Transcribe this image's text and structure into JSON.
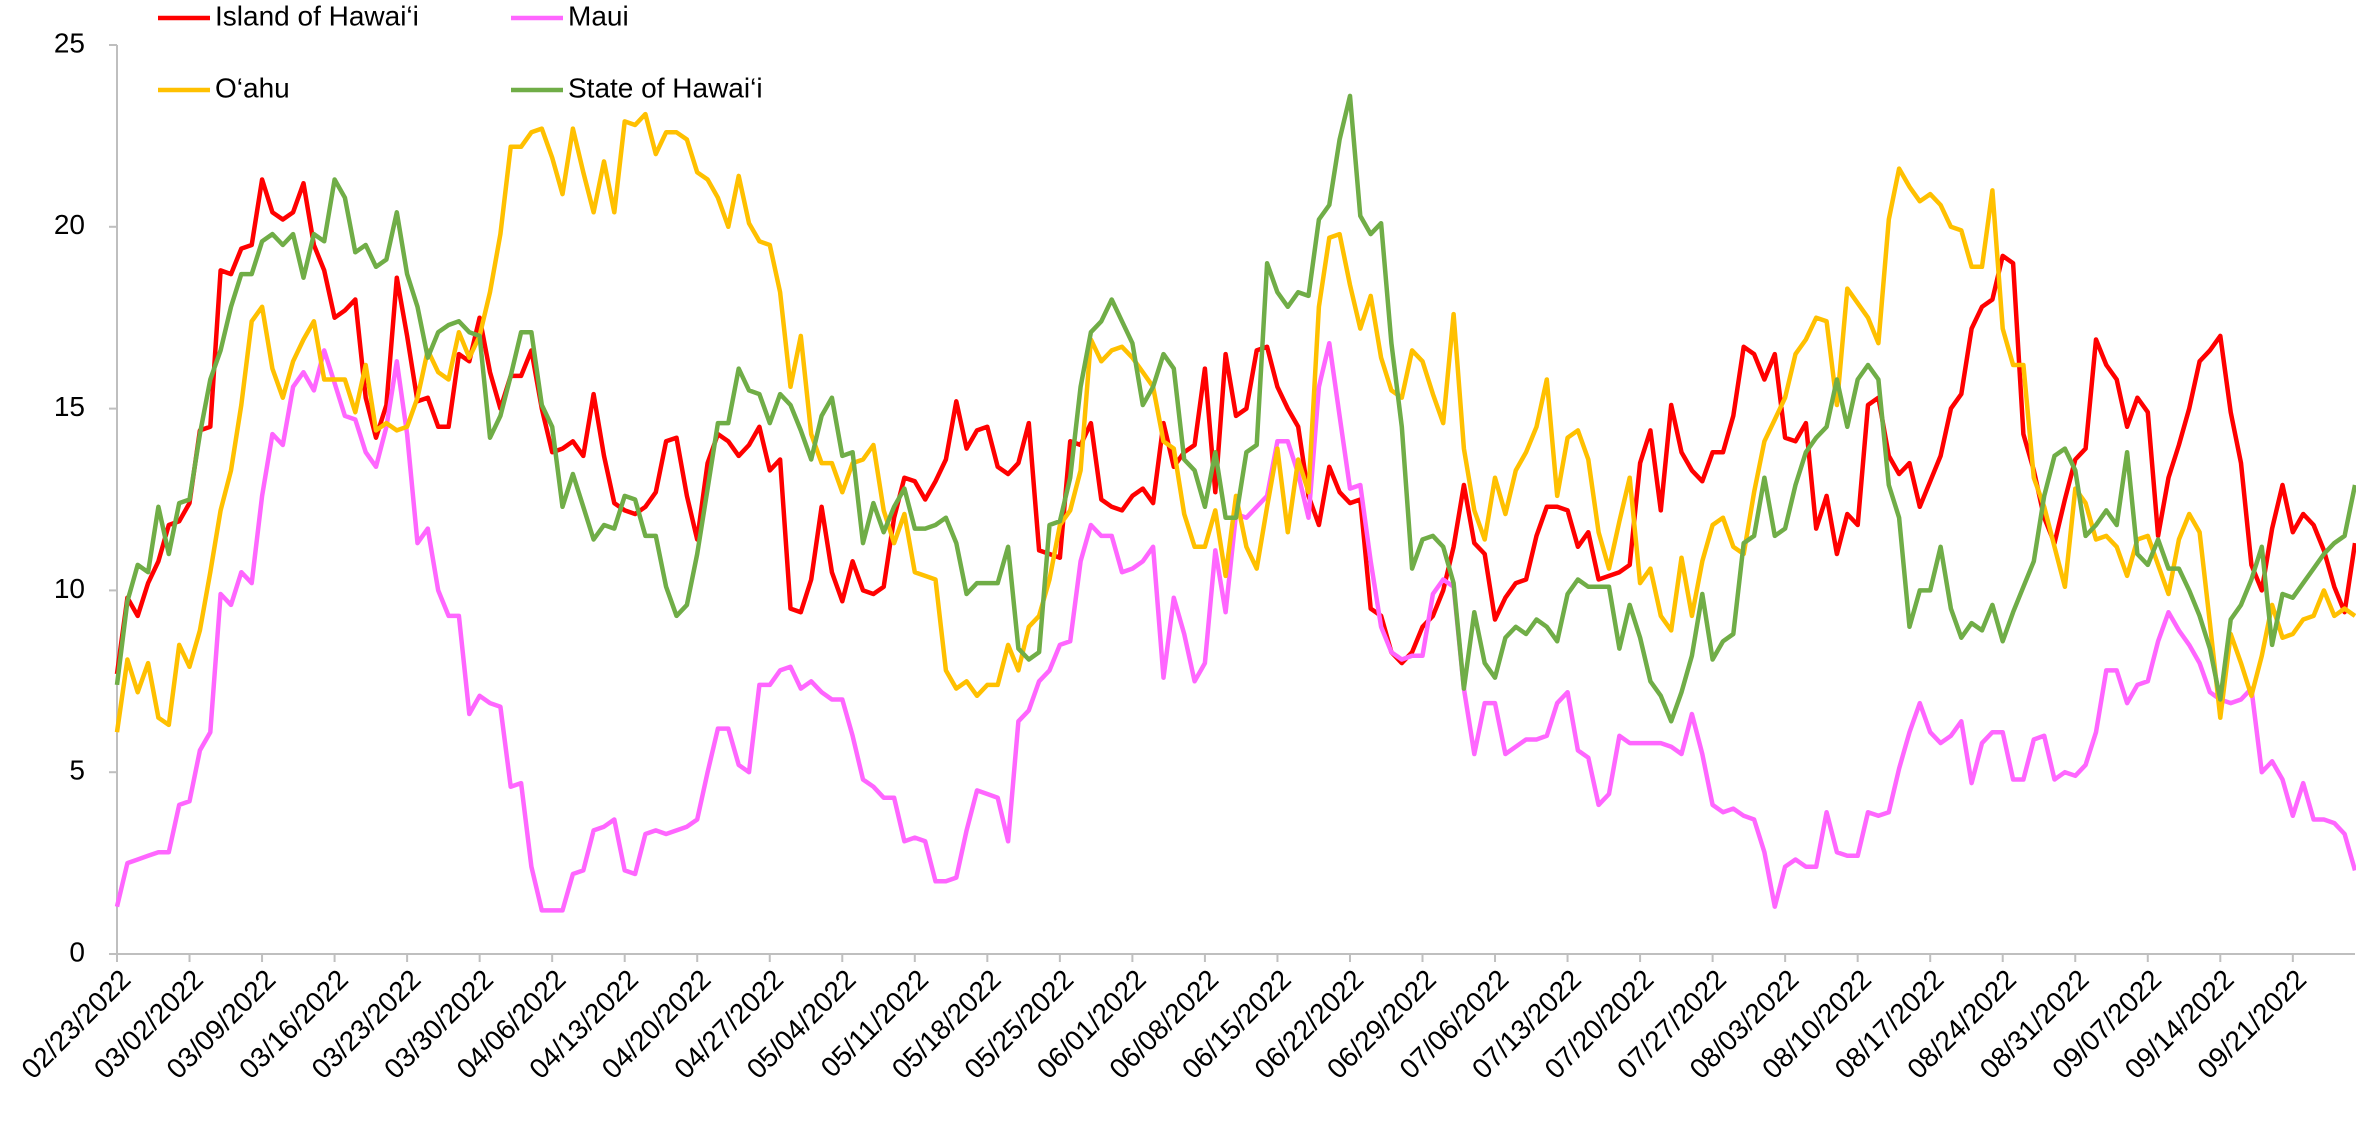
{
  "chart_data": {
    "type": "line",
    "categories": [
      "02/23/2022",
      null,
      null,
      null,
      null,
      null,
      null,
      "03/02/2022",
      null,
      null,
      null,
      null,
      null,
      null,
      "03/09/2022",
      null,
      null,
      null,
      null,
      null,
      null,
      "03/16/2022",
      null,
      null,
      null,
      null,
      null,
      null,
      "03/23/2022",
      null,
      null,
      null,
      null,
      null,
      null,
      "03/30/2022",
      null,
      null,
      null,
      null,
      null,
      null,
      "04/06/2022",
      null,
      null,
      null,
      null,
      null,
      null,
      "04/13/2022",
      null,
      null,
      null,
      null,
      null,
      null,
      "04/20/2022",
      null,
      null,
      null,
      null,
      null,
      null,
      "04/27/2022",
      null,
      null,
      null,
      null,
      null,
      null,
      "05/04/2022",
      null,
      null,
      null,
      null,
      null,
      null,
      "05/11/2022",
      null,
      null,
      null,
      null,
      null,
      null,
      "05/18/2022",
      null,
      null,
      null,
      null,
      null,
      null,
      "05/25/2022",
      null,
      null,
      null,
      null,
      null,
      null,
      "06/01/2022",
      null,
      null,
      null,
      null,
      null,
      null,
      "06/08/2022",
      null,
      null,
      null,
      null,
      null,
      null,
      "06/15/2022",
      null,
      null,
      null,
      null,
      null,
      null,
      "06/22/2022",
      null,
      null,
      null,
      null,
      null,
      null,
      "06/29/2022",
      null,
      null,
      null,
      null,
      null,
      null,
      "07/06/2022",
      null,
      null,
      null,
      null,
      null,
      null,
      "07/13/2022",
      null,
      null,
      null,
      null,
      null,
      null,
      "07/20/2022",
      null,
      null,
      null,
      null,
      null,
      null,
      "07/27/2022",
      null,
      null,
      null,
      null,
      null,
      null,
      "08/03/2022",
      null,
      null,
      null,
      null,
      null,
      null,
      "08/10/2022",
      null,
      null,
      null,
      null,
      null,
      null,
      "08/17/2022",
      null,
      null,
      null,
      null,
      null,
      null,
      "08/24/2022",
      null,
      null,
      null,
      null,
      null,
      null,
      "08/31/2022",
      null,
      null,
      null,
      null,
      null,
      null,
      "09/07/2022",
      null,
      null,
      null,
      null,
      null,
      null,
      "09/14/2022",
      null,
      null,
      null,
      null,
      null,
      null,
      "09/21/2022",
      null,
      null,
      null,
      null,
      null,
      null
    ],
    "series": [
      {
        "name": "Island of Hawai‘i",
        "color": "#ff0000",
        "values": [
          7.7,
          9.8,
          9.3,
          10.2,
          10.8,
          11.8,
          11.9,
          12.4,
          14.4,
          14.5,
          18.8,
          18.7,
          19.4,
          19.5,
          21.3,
          20.4,
          20.2,
          20.4,
          21.2,
          19.5,
          18.8,
          17.5,
          17.7,
          18.0,
          15.3,
          14.2,
          15.1,
          18.6,
          17.0,
          15.2,
          15.3,
          14.5,
          14.5,
          16.5,
          16.3,
          17.5,
          16.0,
          15.0,
          15.9,
          15.9,
          16.6,
          15.0,
          13.8,
          13.9,
          14.1,
          13.7,
          15.4,
          13.7,
          12.4,
          12.2,
          12.1,
          12.3,
          12.7,
          14.1,
          14.2,
          12.6,
          11.4,
          13.5,
          14.3,
          14.1,
          13.7,
          14.0,
          14.5,
          13.3,
          13.6,
          9.5,
          9.4,
          10.3,
          12.3,
          10.5,
          9.7,
          10.8,
          10.0,
          9.9,
          10.1,
          12.0,
          13.1,
          13.0,
          12.5,
          13.0,
          13.6,
          15.2,
          13.9,
          14.4,
          14.5,
          13.4,
          13.2,
          13.5,
          14.6,
          11.1,
          11.0,
          10.9,
          14.1,
          14.0,
          14.6,
          12.5,
          12.3,
          12.2,
          12.6,
          12.8,
          12.4,
          14.6,
          13.4,
          13.8,
          14.0,
          16.1,
          12.7,
          16.5,
          14.8,
          15.0,
          16.6,
          16.7,
          15.6,
          15.0,
          14.5,
          12.6,
          11.8,
          13.4,
          12.7,
          12.4,
          12.5,
          9.5,
          9.3,
          8.3,
          8.0,
          8.3,
          9.0,
          9.3,
          10.0,
          11.2,
          12.9,
          11.3,
          11.0,
          9.2,
          9.8,
          10.2,
          10.3,
          11.5,
          12.3,
          12.3,
          12.2,
          11.2,
          11.6,
          10.3,
          10.4,
          10.5,
          10.7,
          13.5,
          14.4,
          12.2,
          15.1,
          13.8,
          13.3,
          13.0,
          13.8,
          13.8,
          14.8,
          16.7,
          16.5,
          15.8,
          16.5,
          14.2,
          14.1,
          14.6,
          11.7,
          12.6,
          11.0,
          12.1,
          11.8,
          15.1,
          15.3,
          13.7,
          13.2,
          13.5,
          12.3,
          13.0,
          13.7,
          15.0,
          15.4,
          17.2,
          17.8,
          18.0,
          19.2,
          19.0,
          14.3,
          13.3,
          12.0,
          11.3,
          12.5,
          13.6,
          13.9,
          16.9,
          16.2,
          15.8,
          14.5,
          15.3,
          14.9,
          11.5,
          13.1,
          14.0,
          15.0,
          16.3,
          16.6,
          17.0,
          14.9,
          13.5,
          10.7,
          10.0,
          11.7,
          12.9,
          11.6,
          12.1,
          11.8,
          11.1,
          10.1,
          9.4,
          11.3
        ]
      },
      {
        "name": "Maui",
        "color": "#ff66ff",
        "values": [
          1.3,
          2.5,
          2.6,
          2.7,
          2.8,
          2.8,
          4.1,
          4.2,
          5.6,
          6.1,
          9.9,
          9.6,
          10.5,
          10.2,
          12.6,
          14.3,
          14.0,
          15.6,
          16.0,
          15.5,
          16.6,
          15.7,
          14.8,
          14.7,
          13.8,
          13.4,
          14.5,
          16.3,
          14.3,
          11.3,
          11.7,
          10.0,
          9.3,
          9.3,
          6.6,
          7.1,
          6.9,
          6.8,
          4.6,
          4.7,
          2.4,
          1.2,
          1.2,
          1.2,
          2.2,
          2.3,
          3.4,
          3.5,
          3.7,
          2.3,
          2.2,
          3.3,
          3.4,
          3.3,
          3.4,
          3.5,
          3.7,
          5.0,
          6.2,
          6.2,
          5.2,
          5.0,
          7.4,
          7.4,
          7.8,
          7.9,
          7.3,
          7.5,
          7.2,
          7.0,
          7.0,
          6.0,
          4.8,
          4.6,
          4.3,
          4.3,
          3.1,
          3.2,
          3.1,
          2.0,
          2.0,
          2.1,
          3.4,
          4.5,
          4.4,
          4.3,
          3.1,
          6.4,
          6.7,
          7.5,
          7.8,
          8.5,
          8.6,
          10.8,
          11.8,
          11.5,
          11.5,
          10.5,
          10.6,
          10.8,
          11.2,
          7.6,
          9.8,
          8.8,
          7.5,
          8.0,
          11.1,
          9.4,
          12.1,
          12.0,
          12.3,
          12.6,
          14.1,
          14.1,
          13.2,
          12.0,
          15.6,
          16.8,
          14.8,
          12.8,
          12.9,
          10.8,
          9.0,
          8.3,
          8.1,
          8.2,
          8.2,
          9.9,
          10.3,
          10.1,
          7.3,
          5.5,
          6.9,
          6.9,
          5.5,
          5.7,
          5.9,
          5.9,
          6.0,
          6.9,
          7.2,
          5.6,
          5.4,
          4.1,
          4.4,
          6.0,
          5.8,
          5.8,
          5.8,
          5.8,
          5.7,
          5.5,
          6.6,
          5.5,
          4.1,
          3.9,
          4.0,
          3.8,
          3.7,
          2.8,
          1.3,
          2.4,
          2.6,
          2.4,
          2.4,
          3.9,
          2.8,
          2.7,
          2.7,
          3.9,
          3.8,
          3.9,
          5.1,
          6.1,
          6.9,
          6.1,
          5.8,
          6.0,
          6.4,
          4.7,
          5.8,
          6.1,
          6.1,
          4.8,
          4.8,
          5.9,
          6.0,
          4.8,
          5.0,
          4.9,
          5.2,
          6.1,
          7.8,
          7.8,
          6.9,
          7.4,
          7.5,
          8.6,
          9.4,
          8.9,
          8.5,
          8.0,
          7.2,
          7.0,
          6.9,
          7.0,
          7.3,
          5.0,
          5.3,
          4.8,
          3.8,
          4.7,
          3.7,
          3.7,
          3.6,
          3.3,
          2.3
        ]
      },
      {
        "name": "O‘ahu",
        "color": "#ffc000",
        "values": [
          6.1,
          8.1,
          7.2,
          8.0,
          6.5,
          6.3,
          8.5,
          7.9,
          8.9,
          10.5,
          12.2,
          13.3,
          15.1,
          17.4,
          17.8,
          16.1,
          15.3,
          16.3,
          16.9,
          17.4,
          15.8,
          15.8,
          15.8,
          14.9,
          16.2,
          14.4,
          14.6,
          14.4,
          14.5,
          15.3,
          16.6,
          16.0,
          15.8,
          17.1,
          16.4,
          17.0,
          18.2,
          19.8,
          22.2,
          22.2,
          22.6,
          22.7,
          21.9,
          20.9,
          22.7,
          21.5,
          20.4,
          21.8,
          20.4,
          22.9,
          22.8,
          23.1,
          22.0,
          22.6,
          22.6,
          22.4,
          21.5,
          21.3,
          20.8,
          20.0,
          21.4,
          20.1,
          19.6,
          19.5,
          18.2,
          15.6,
          17.0,
          14.3,
          13.5,
          13.5,
          12.7,
          13.5,
          13.6,
          14.0,
          12.2,
          11.3,
          12.1,
          10.5,
          10.4,
          10.3,
          7.8,
          7.3,
          7.5,
          7.1,
          7.4,
          7.4,
          8.5,
          7.8,
          9.0,
          9.3,
          10.3,
          11.8,
          12.2,
          13.3,
          16.9,
          16.3,
          16.6,
          16.7,
          16.4,
          16.0,
          15.6,
          14.1,
          13.9,
          12.1,
          11.2,
          11.2,
          12.2,
          10.4,
          12.6,
          11.2,
          10.6,
          12.3,
          13.9,
          11.6,
          13.6,
          12.7,
          17.8,
          19.7,
          19.8,
          18.4,
          17.2,
          18.1,
          16.4,
          15.5,
          15.3,
          16.6,
          16.3,
          15.4,
          14.6,
          17.6,
          13.9,
          12.2,
          11.4,
          13.1,
          12.1,
          13.3,
          13.8,
          14.5,
          15.8,
          12.6,
          14.2,
          14.4,
          13.6,
          11.6,
          10.6,
          11.9,
          13.1,
          10.2,
          10.6,
          9.3,
          8.9,
          10.9,
          9.3,
          10.8,
          11.8,
          12.0,
          11.2,
          11.0,
          12.7,
          14.1,
          14.7,
          15.3,
          16.5,
          16.9,
          17.5,
          17.4,
          15.1,
          18.3,
          17.9,
          17.5,
          16.8,
          20.2,
          21.6,
          21.1,
          20.7,
          20.9,
          20.6,
          20.0,
          19.9,
          18.9,
          18.9,
          21.0,
          17.2,
          16.2,
          16.2,
          13.1,
          12.3,
          11.2,
          10.1,
          12.8,
          12.4,
          11.4,
          11.5,
          11.2,
          10.4,
          11.4,
          11.5,
          10.7,
          9.9,
          11.4,
          12.1,
          11.6,
          9.1,
          6.5,
          8.8,
          8.0,
          7.1,
          8.2,
          9.6,
          8.7,
          8.8,
          9.2,
          9.3,
          10.0,
          9.3,
          9.5,
          9.3
        ]
      },
      {
        "name": "State of Hawai‘i",
        "color": "#70ad47",
        "values": [
          7.4,
          9.7,
          10.7,
          10.5,
          12.3,
          11.0,
          12.4,
          12.5,
          14.3,
          15.8,
          16.6,
          17.8,
          18.7,
          18.7,
          19.6,
          19.8,
          19.5,
          19.8,
          18.6,
          19.8,
          19.6,
          21.3,
          20.8,
          19.3,
          19.5,
          18.9,
          19.1,
          20.4,
          18.7,
          17.8,
          16.4,
          17.1,
          17.3,
          17.4,
          17.1,
          17.0,
          14.2,
          14.8,
          15.9,
          17.1,
          17.1,
          15.1,
          14.5,
          12.3,
          13.2,
          12.3,
          11.4,
          11.8,
          11.7,
          12.6,
          12.5,
          11.5,
          11.5,
          10.1,
          9.3,
          9.6,
          11.0,
          12.8,
          14.6,
          14.6,
          16.1,
          15.5,
          15.4,
          14.6,
          15.4,
          15.1,
          14.4,
          13.6,
          14.8,
          15.3,
          13.7,
          13.8,
          11.3,
          12.4,
          11.6,
          12.3,
          12.8,
          11.7,
          11.7,
          11.8,
          12.0,
          11.3,
          9.9,
          10.2,
          10.2,
          10.2,
          11.2,
          8.4,
          8.1,
          8.3,
          11.8,
          11.9,
          13.1,
          15.6,
          17.1,
          17.4,
          18.0,
          17.4,
          16.8,
          15.1,
          15.6,
          16.5,
          16.1,
          13.6,
          13.3,
          12.3,
          13.8,
          12.0,
          12.0,
          13.8,
          14.0,
          19.0,
          18.2,
          17.8,
          18.2,
          18.1,
          20.2,
          20.6,
          22.4,
          23.6,
          20.3,
          19.8,
          20.1,
          16.8,
          14.5,
          10.6,
          11.4,
          11.5,
          11.2,
          10.2,
          7.3,
          9.4,
          8.0,
          7.6,
          8.7,
          9.0,
          8.8,
          9.2,
          9.0,
          8.6,
          9.9,
          10.3,
          10.1,
          10.1,
          10.1,
          8.4,
          9.6,
          8.7,
          7.5,
          7.1,
          6.4,
          7.2,
          8.2,
          9.9,
          8.1,
          8.6,
          8.8,
          11.3,
          11.5,
          13.1,
          11.5,
          11.7,
          12.9,
          13.8,
          14.2,
          14.5,
          15.8,
          14.5,
          15.8,
          16.2,
          15.8,
          12.9,
          12.0,
          9.0,
          10.0,
          10.0,
          11.2,
          9.5,
          8.7,
          9.1,
          8.9,
          9.6,
          8.6,
          9.4,
          10.1,
          10.8,
          12.6,
          13.7,
          13.9,
          13.3,
          11.5,
          11.8,
          12.2,
          11.8,
          13.8,
          11.0,
          10.7,
          11.4,
          10.6,
          10.6,
          10.0,
          9.3,
          8.4,
          7.0,
          9.2,
          9.6,
          10.3,
          11.2,
          8.5,
          9.9,
          9.8,
          10.2,
          10.6,
          11.0,
          11.3,
          11.5,
          12.9
        ]
      }
    ],
    "ylim": [
      0,
      25
    ],
    "yticks": [
      0,
      5,
      10,
      15,
      20,
      25
    ],
    "grid": false,
    "legend": "top"
  }
}
